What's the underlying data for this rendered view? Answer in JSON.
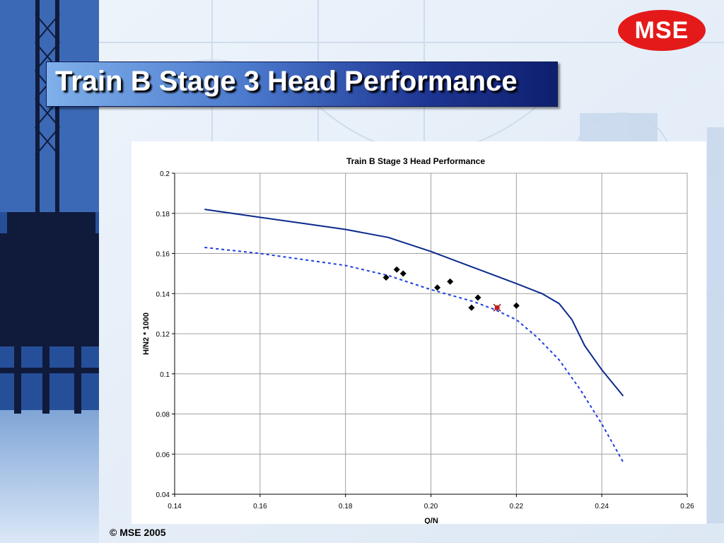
{
  "slide": {
    "title": "Train B Stage 3 Head Performance",
    "logo_text": "MSE",
    "footer": "© MSE 2005"
  },
  "colors": {
    "title_gradient_start": "#7fb0ea",
    "title_gradient_end": "#0f1f6e",
    "logo_red": "#e41a1a",
    "curve_solid": "#0b2a8c",
    "curve_dashed": "#1d3ee0",
    "marker_red": "#c41a1a"
  },
  "chart_data": {
    "type": "scatter",
    "title": "Train B Stage 3 Head Performance",
    "xlabel": "Q/N",
    "ylabel": "H/N2 * 1000",
    "xlim": [
      0.14,
      0.26
    ],
    "ylim": [
      0.04,
      0.2
    ],
    "x_ticks": [
      "0.14",
      "0.16",
      "0.18",
      "0.20",
      "0.22",
      "0.24",
      "0.26"
    ],
    "y_ticks": [
      "0.04",
      "0.06",
      "0.08",
      "0.1",
      "0.12",
      "0.14",
      "0.16",
      "0.18",
      "0.2"
    ],
    "grid": true,
    "series": [
      {
        "style": "line-solid",
        "points": [
          [
            0.147,
            0.182
          ],
          [
            0.16,
            0.178
          ],
          [
            0.17,
            0.175
          ],
          [
            0.18,
            0.172
          ],
          [
            0.19,
            0.168
          ],
          [
            0.2,
            0.161
          ],
          [
            0.21,
            0.153
          ],
          [
            0.22,
            0.145
          ],
          [
            0.226,
            0.14
          ],
          [
            0.23,
            0.135
          ],
          [
            0.233,
            0.127
          ],
          [
            0.236,
            0.114
          ],
          [
            0.24,
            0.102
          ],
          [
            0.245,
            0.089
          ]
        ]
      },
      {
        "style": "line-dashed",
        "points": [
          [
            0.147,
            0.163
          ],
          [
            0.16,
            0.16
          ],
          [
            0.17,
            0.157
          ],
          [
            0.18,
            0.154
          ],
          [
            0.19,
            0.149
          ],
          [
            0.2,
            0.142
          ],
          [
            0.21,
            0.136
          ],
          [
            0.215,
            0.132
          ],
          [
            0.22,
            0.127
          ],
          [
            0.225,
            0.118
          ],
          [
            0.23,
            0.107
          ],
          [
            0.235,
            0.092
          ],
          [
            0.24,
            0.075
          ],
          [
            0.245,
            0.056
          ]
        ]
      },
      {
        "style": "markers-diamond",
        "points": [
          [
            0.1895,
            0.148
          ],
          [
            0.192,
            0.152
          ],
          [
            0.1935,
            0.15
          ],
          [
            0.2015,
            0.143
          ],
          [
            0.2045,
            0.146
          ],
          [
            0.2095,
            0.133
          ],
          [
            0.211,
            0.138
          ],
          [
            0.22,
            0.134
          ]
        ]
      },
      {
        "style": "marker-x",
        "points": [
          [
            0.2155,
            0.133
          ]
        ]
      }
    ]
  }
}
